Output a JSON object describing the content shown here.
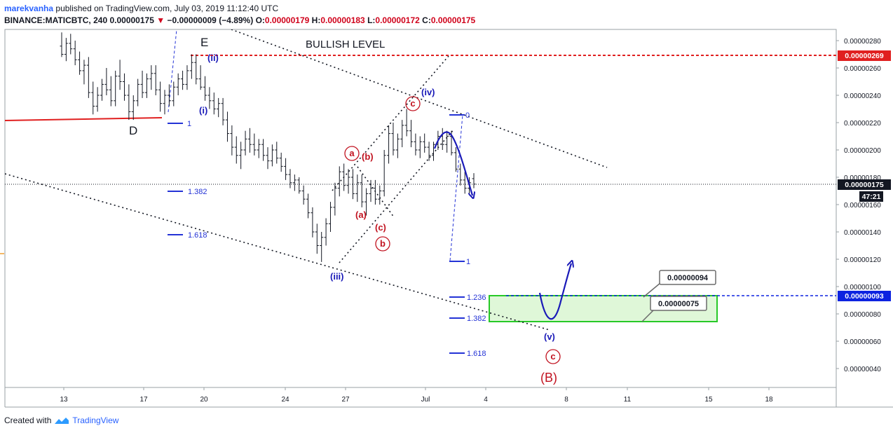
{
  "header": {
    "user": "marekvanha",
    "published_text": "published on TradingView.com, July 03, 2019 11:12:40 UTC",
    "symbol": "BINANCE:MATICBTC, 240",
    "last": "0.00000175",
    "change": "−0.00000009 (−4.89%)",
    "open_label": "O:",
    "open": "0.00000179",
    "high_label": "H:",
    "high": "0.00000183",
    "low_label": "L:",
    "low": "0.00000172",
    "close_label": "C:",
    "close": "0.00000175"
  },
  "footer": {
    "created_with": "Created with",
    "brand": "TradingView"
  },
  "colors": {
    "wave_blue": "#1a1ab8",
    "wave_red": "#c1121f",
    "fib_blue": "#2433d6",
    "resistance_red": "#e02020",
    "support_green": "#27c927",
    "zone_fill": "#dff7d8",
    "price_badge": "#131722",
    "level_badge_red": "#e02020",
    "level_badge_blue": "#0d23e0"
  },
  "chart_data": {
    "type": "candlestick",
    "symbol": "MATICBTC",
    "exchange": "BINANCE",
    "timeframe": "240",
    "x_ticks": [
      "13",
      "17",
      "20",
      "24",
      "27",
      "Jul",
      "4",
      "8",
      "11",
      "15",
      "18"
    ],
    "y_ticks": [
      "0.00000040",
      "0.00000060",
      "0.00000080",
      "0.00000100",
      "0.00000120",
      "0.00000140",
      "0.00000160",
      "0.00000180",
      "0.00000200",
      "0.00000220",
      "0.00000240",
      "0.00000260",
      "0.00000280"
    ],
    "ylim": [
      2.6e-07,
      2.92e-06
    ],
    "current_price": {
      "label": "0.00000175",
      "value": 1.75e-06,
      "countdown": "47:21"
    },
    "levels": [
      {
        "name": "bullish-level",
        "label": "0.00000269",
        "value": 2.69e-06,
        "color": "#e02020",
        "text": "BULLISH LEVEL"
      },
      {
        "name": "target-level",
        "label": "0.00000093",
        "value": 9.3e-07,
        "color": "#0d23e0"
      }
    ],
    "target_zone": {
      "upper": 9.4e-07,
      "lower": 7.5e-07,
      "upper_label": "0.00000094",
      "lower_label": "0.00000075"
    },
    "wave_labels": {
      "E": "E",
      "D": "D",
      "i": "(i)",
      "ii": "(ii)",
      "iii": "(iii)",
      "iv": "(iv)",
      "v": "(v)",
      "a_circle": "a",
      "b_circle": "b",
      "c_circle_top": "c",
      "c_circle_bottom": "c",
      "a_paren": "(a)",
      "b_paren": "(b)",
      "c_paren": "(c)",
      "a_paren_low": "(a)",
      "B_big": "(B)"
    },
    "fib_labels": {
      "left_1": "1",
      "left_1382": "1.382",
      "left_1618": "1.618",
      "right_0": "0",
      "right_1": "1",
      "right_1236": "1.236",
      "right_1382": "1.382",
      "right_1618": "1.618"
    },
    "candles": [
      {
        "o": 276,
        "h": 286,
        "l": 268,
        "c": 270
      },
      {
        "o": 270,
        "h": 282,
        "l": 265,
        "c": 278
      },
      {
        "o": 278,
        "h": 285,
        "l": 270,
        "c": 274
      },
      {
        "o": 274,
        "h": 280,
        "l": 262,
        "c": 266
      },
      {
        "o": 266,
        "h": 272,
        "l": 255,
        "c": 258
      },
      {
        "o": 258,
        "h": 266,
        "l": 248,
        "c": 262
      },
      {
        "o": 262,
        "h": 268,
        "l": 238,
        "c": 242
      },
      {
        "o": 242,
        "h": 250,
        "l": 226,
        "c": 232
      },
      {
        "o": 232,
        "h": 246,
        "l": 228,
        "c": 240
      },
      {
        "o": 240,
        "h": 252,
        "l": 236,
        "c": 248
      },
      {
        "o": 248,
        "h": 260,
        "l": 240,
        "c": 244
      },
      {
        "o": 244,
        "h": 254,
        "l": 232,
        "c": 236
      },
      {
        "o": 236,
        "h": 258,
        "l": 232,
        "c": 254
      },
      {
        "o": 254,
        "h": 266,
        "l": 244,
        "c": 250
      },
      {
        "o": 250,
        "h": 256,
        "l": 236,
        "c": 240
      },
      {
        "o": 240,
        "h": 248,
        "l": 222,
        "c": 228
      },
      {
        "o": 228,
        "h": 240,
        "l": 222,
        "c": 236
      },
      {
        "o": 236,
        "h": 252,
        "l": 232,
        "c": 248
      },
      {
        "o": 248,
        "h": 258,
        "l": 238,
        "c": 242
      },
      {
        "o": 242,
        "h": 256,
        "l": 238,
        "c": 252
      },
      {
        "o": 252,
        "h": 262,
        "l": 244,
        "c": 256
      },
      {
        "o": 256,
        "h": 262,
        "l": 240,
        "c": 244
      },
      {
        "o": 244,
        "h": 250,
        "l": 228,
        "c": 234
      },
      {
        "o": 234,
        "h": 244,
        "l": 226,
        "c": 240
      },
      {
        "o": 240,
        "h": 248,
        "l": 232,
        "c": 236
      },
      {
        "o": 236,
        "h": 250,
        "l": 232,
        "c": 246
      },
      {
        "o": 246,
        "h": 256,
        "l": 240,
        "c": 252
      },
      {
        "o": 252,
        "h": 258,
        "l": 244,
        "c": 248
      },
      {
        "o": 248,
        "h": 262,
        "l": 244,
        "c": 258
      },
      {
        "o": 258,
        "h": 270,
        "l": 252,
        "c": 264
      },
      {
        "o": 264,
        "h": 270,
        "l": 248,
        "c": 252
      },
      {
        "o": 252,
        "h": 262,
        "l": 244,
        "c": 246
      },
      {
        "o": 246,
        "h": 254,
        "l": 236,
        "c": 240
      },
      {
        "o": 240,
        "h": 246,
        "l": 230,
        "c": 236
      },
      {
        "o": 236,
        "h": 242,
        "l": 226,
        "c": 230
      },
      {
        "o": 230,
        "h": 238,
        "l": 224,
        "c": 234
      },
      {
        "o": 234,
        "h": 238,
        "l": 218,
        "c": 222
      },
      {
        "o": 222,
        "h": 228,
        "l": 206,
        "c": 212
      },
      {
        "o": 212,
        "h": 218,
        "l": 196,
        "c": 202
      },
      {
        "o": 202,
        "h": 210,
        "l": 190,
        "c": 196
      },
      {
        "o": 196,
        "h": 206,
        "l": 186,
        "c": 200
      },
      {
        "o": 200,
        "h": 214,
        "l": 196,
        "c": 208
      },
      {
        "o": 208,
        "h": 216,
        "l": 198,
        "c": 204
      },
      {
        "o": 204,
        "h": 212,
        "l": 196,
        "c": 200
      },
      {
        "o": 200,
        "h": 208,
        "l": 194,
        "c": 204
      },
      {
        "o": 204,
        "h": 208,
        "l": 192,
        "c": 196
      },
      {
        "o": 196,
        "h": 202,
        "l": 186,
        "c": 192
      },
      {
        "o": 192,
        "h": 204,
        "l": 188,
        "c": 200
      },
      {
        "o": 200,
        "h": 206,
        "l": 190,
        "c": 194
      },
      {
        "o": 194,
        "h": 198,
        "l": 184,
        "c": 188
      },
      {
        "o": 188,
        "h": 194,
        "l": 178,
        "c": 182
      },
      {
        "o": 182,
        "h": 186,
        "l": 172,
        "c": 176
      },
      {
        "o": 176,
        "h": 182,
        "l": 170,
        "c": 178
      },
      {
        "o": 178,
        "h": 180,
        "l": 168,
        "c": 170
      },
      {
        "o": 170,
        "h": 174,
        "l": 160,
        "c": 164
      },
      {
        "o": 164,
        "h": 168,
        "l": 150,
        "c": 154
      },
      {
        "o": 154,
        "h": 158,
        "l": 136,
        "c": 140
      },
      {
        "o": 140,
        "h": 146,
        "l": 124,
        "c": 130
      },
      {
        "o": 130,
        "h": 140,
        "l": 118,
        "c": 136
      },
      {
        "o": 136,
        "h": 150,
        "l": 130,
        "c": 146
      },
      {
        "o": 146,
        "h": 162,
        "l": 140,
        "c": 158
      },
      {
        "o": 158,
        "h": 176,
        "l": 152,
        "c": 172
      },
      {
        "o": 172,
        "h": 188,
        "l": 166,
        "c": 184
      },
      {
        "o": 184,
        "h": 190,
        "l": 170,
        "c": 174
      },
      {
        "o": 174,
        "h": 186,
        "l": 168,
        "c": 180
      },
      {
        "o": 180,
        "h": 186,
        "l": 164,
        "c": 168
      },
      {
        "o": 168,
        "h": 182,
        "l": 162,
        "c": 176
      },
      {
        "o": 176,
        "h": 182,
        "l": 158,
        "c": 162
      },
      {
        "o": 162,
        "h": 172,
        "l": 152,
        "c": 168
      },
      {
        "o": 168,
        "h": 178,
        "l": 162,
        "c": 172
      },
      {
        "o": 172,
        "h": 178,
        "l": 160,
        "c": 164
      },
      {
        "o": 164,
        "h": 174,
        "l": 160,
        "c": 170
      },
      {
        "o": 170,
        "h": 200,
        "l": 166,
        "c": 196
      },
      {
        "o": 196,
        "h": 218,
        "l": 190,
        "c": 212
      },
      {
        "o": 212,
        "h": 220,
        "l": 196,
        "c": 200
      },
      {
        "o": 200,
        "h": 212,
        "l": 194,
        "c": 208
      },
      {
        "o": 208,
        "h": 222,
        "l": 202,
        "c": 218
      },
      {
        "o": 218,
        "h": 230,
        "l": 210,
        "c": 214
      },
      {
        "o": 214,
        "h": 222,
        "l": 202,
        "c": 206
      },
      {
        "o": 206,
        "h": 212,
        "l": 196,
        "c": 200
      },
      {
        "o": 200,
        "h": 210,
        "l": 194,
        "c": 206
      },
      {
        "o": 206,
        "h": 212,
        "l": 198,
        "c": 202
      },
      {
        "o": 202,
        "h": 206,
        "l": 192,
        "c": 196
      },
      {
        "o": 196,
        "h": 206,
        "l": 192,
        "c": 204
      },
      {
        "o": 204,
        "h": 214,
        "l": 200,
        "c": 210
      },
      {
        "o": 210,
        "h": 216,
        "l": 200,
        "c": 204
      },
      {
        "o": 204,
        "h": 214,
        "l": 198,
        "c": 210
      },
      {
        "o": 210,
        "h": 214,
        "l": 196,
        "c": 198
      },
      {
        "o": 198,
        "h": 202,
        "l": 184,
        "c": 186
      },
      {
        "o": 186,
        "h": 190,
        "l": 174,
        "c": 178
      },
      {
        "o": 178,
        "h": 184,
        "l": 168,
        "c": 172
      },
      {
        "o": 172,
        "h": 180,
        "l": 168,
        "c": 176
      },
      {
        "o": 179,
        "h": 183,
        "l": 172,
        "c": 175
      }
    ]
  }
}
